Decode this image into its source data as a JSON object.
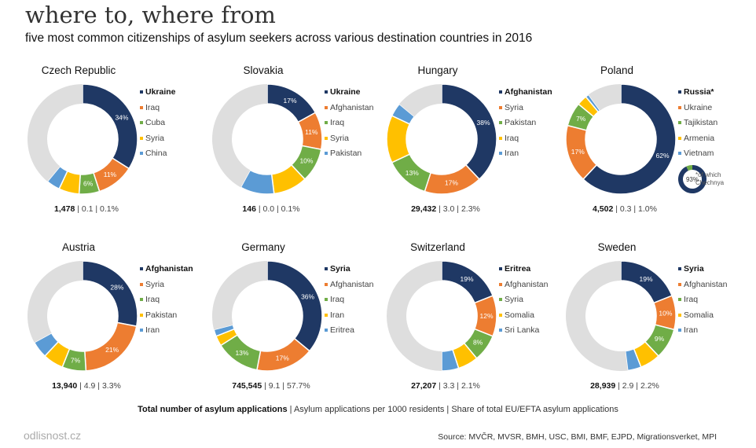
{
  "title": "where to, where from",
  "subtitle": "five most common citizenships of asylum seekers across various destination countries in 2016",
  "colors": [
    "#1f3864",
    "#ed7d31",
    "#70ad47",
    "#ffc000",
    "#5b9bd5"
  ],
  "rest_color": "#dedede",
  "chart_data": [
    {
      "type": "pie",
      "title": "Czech Republic",
      "categories": [
        "Ukraine",
        "Iraq",
        "Cuba",
        "Syria",
        "China"
      ],
      "values": [
        34,
        11,
        6,
        6,
        4
      ],
      "stats": {
        "total": "1,478",
        "per_1000": "0.1",
        "share": "0.1%"
      }
    },
    {
      "type": "pie",
      "title": "Slovakia",
      "categories": [
        "Ukraine",
        "Afghanistan",
        "Iraq",
        "Syria",
        "Pakistan"
      ],
      "values": [
        17,
        11,
        10,
        10,
        10
      ],
      "stats": {
        "total": "146",
        "per_1000": "0.0",
        "share": "0.1%"
      }
    },
    {
      "type": "pie",
      "title": "Hungary",
      "categories": [
        "Afghanistan",
        "Syria",
        "Pakistan",
        "Iraq",
        "Iran"
      ],
      "values": [
        38,
        17,
        13,
        14,
        4
      ],
      "stats": {
        "total": "29,432",
        "per_1000": "3.0",
        "share": "2.3%"
      }
    },
    {
      "type": "pie",
      "title": "Poland",
      "categories": [
        "Russia*",
        "Ukraine",
        "Tajikistan",
        "Armenia",
        "Vietnam"
      ],
      "values": [
        62,
        17,
        7,
        3,
        1
      ],
      "stats": {
        "total": "4,502",
        "per_1000": "0.3",
        "share": "1.0%"
      },
      "inset": {
        "value": 93,
        "label": "93%",
        "note": "*of which Chechnya"
      }
    },
    {
      "type": "pie",
      "title": "Austria",
      "categories": [
        "Afghanistan",
        "Syria",
        "Iraq",
        "Pakistan",
        "Iran"
      ],
      "values": [
        28,
        21,
        7,
        6,
        5
      ],
      "stats": {
        "total": "13,940",
        "per_1000": "4.9",
        "share": "3.3%"
      }
    },
    {
      "type": "pie",
      "title": "Germany",
      "categories": [
        "Syria",
        "Afghanistan",
        "Iraq",
        "Iran",
        "Eritrea"
      ],
      "values": [
        36,
        17,
        13,
        3,
        2
      ],
      "stats": {
        "total": "745,545",
        "per_1000": "9.1",
        "share": "57.7%"
      }
    },
    {
      "type": "pie",
      "title": "Switzerland",
      "categories": [
        "Eritrea",
        "Afghanistan",
        "Syria",
        "Somalia",
        "Sri Lanka"
      ],
      "values": [
        19,
        12,
        8,
        6,
        5
      ],
      "stats": {
        "total": "27,207",
        "per_1000": "3.3",
        "share": "2.1%"
      }
    },
    {
      "type": "pie",
      "title": "Sweden",
      "categories": [
        "Syria",
        "Afghanistan",
        "Iraq",
        "Somalia",
        "Iran"
      ],
      "values": [
        19,
        10,
        9,
        6,
        4
      ],
      "stats": {
        "total": "28,939",
        "per_1000": "2.9",
        "share": "2.2%"
      }
    }
  ],
  "footer": {
    "bold": "Total number of asylum applications",
    "rest": " | Asylum applications per 1000 residents | Share of total EU/EFTA asylum applications"
  },
  "brand": "odlisnost.cz",
  "source": "Source: MVČR, MVSR, BMH, USC, BMI, BMF, EJPD, Migrationsverket, MPI"
}
